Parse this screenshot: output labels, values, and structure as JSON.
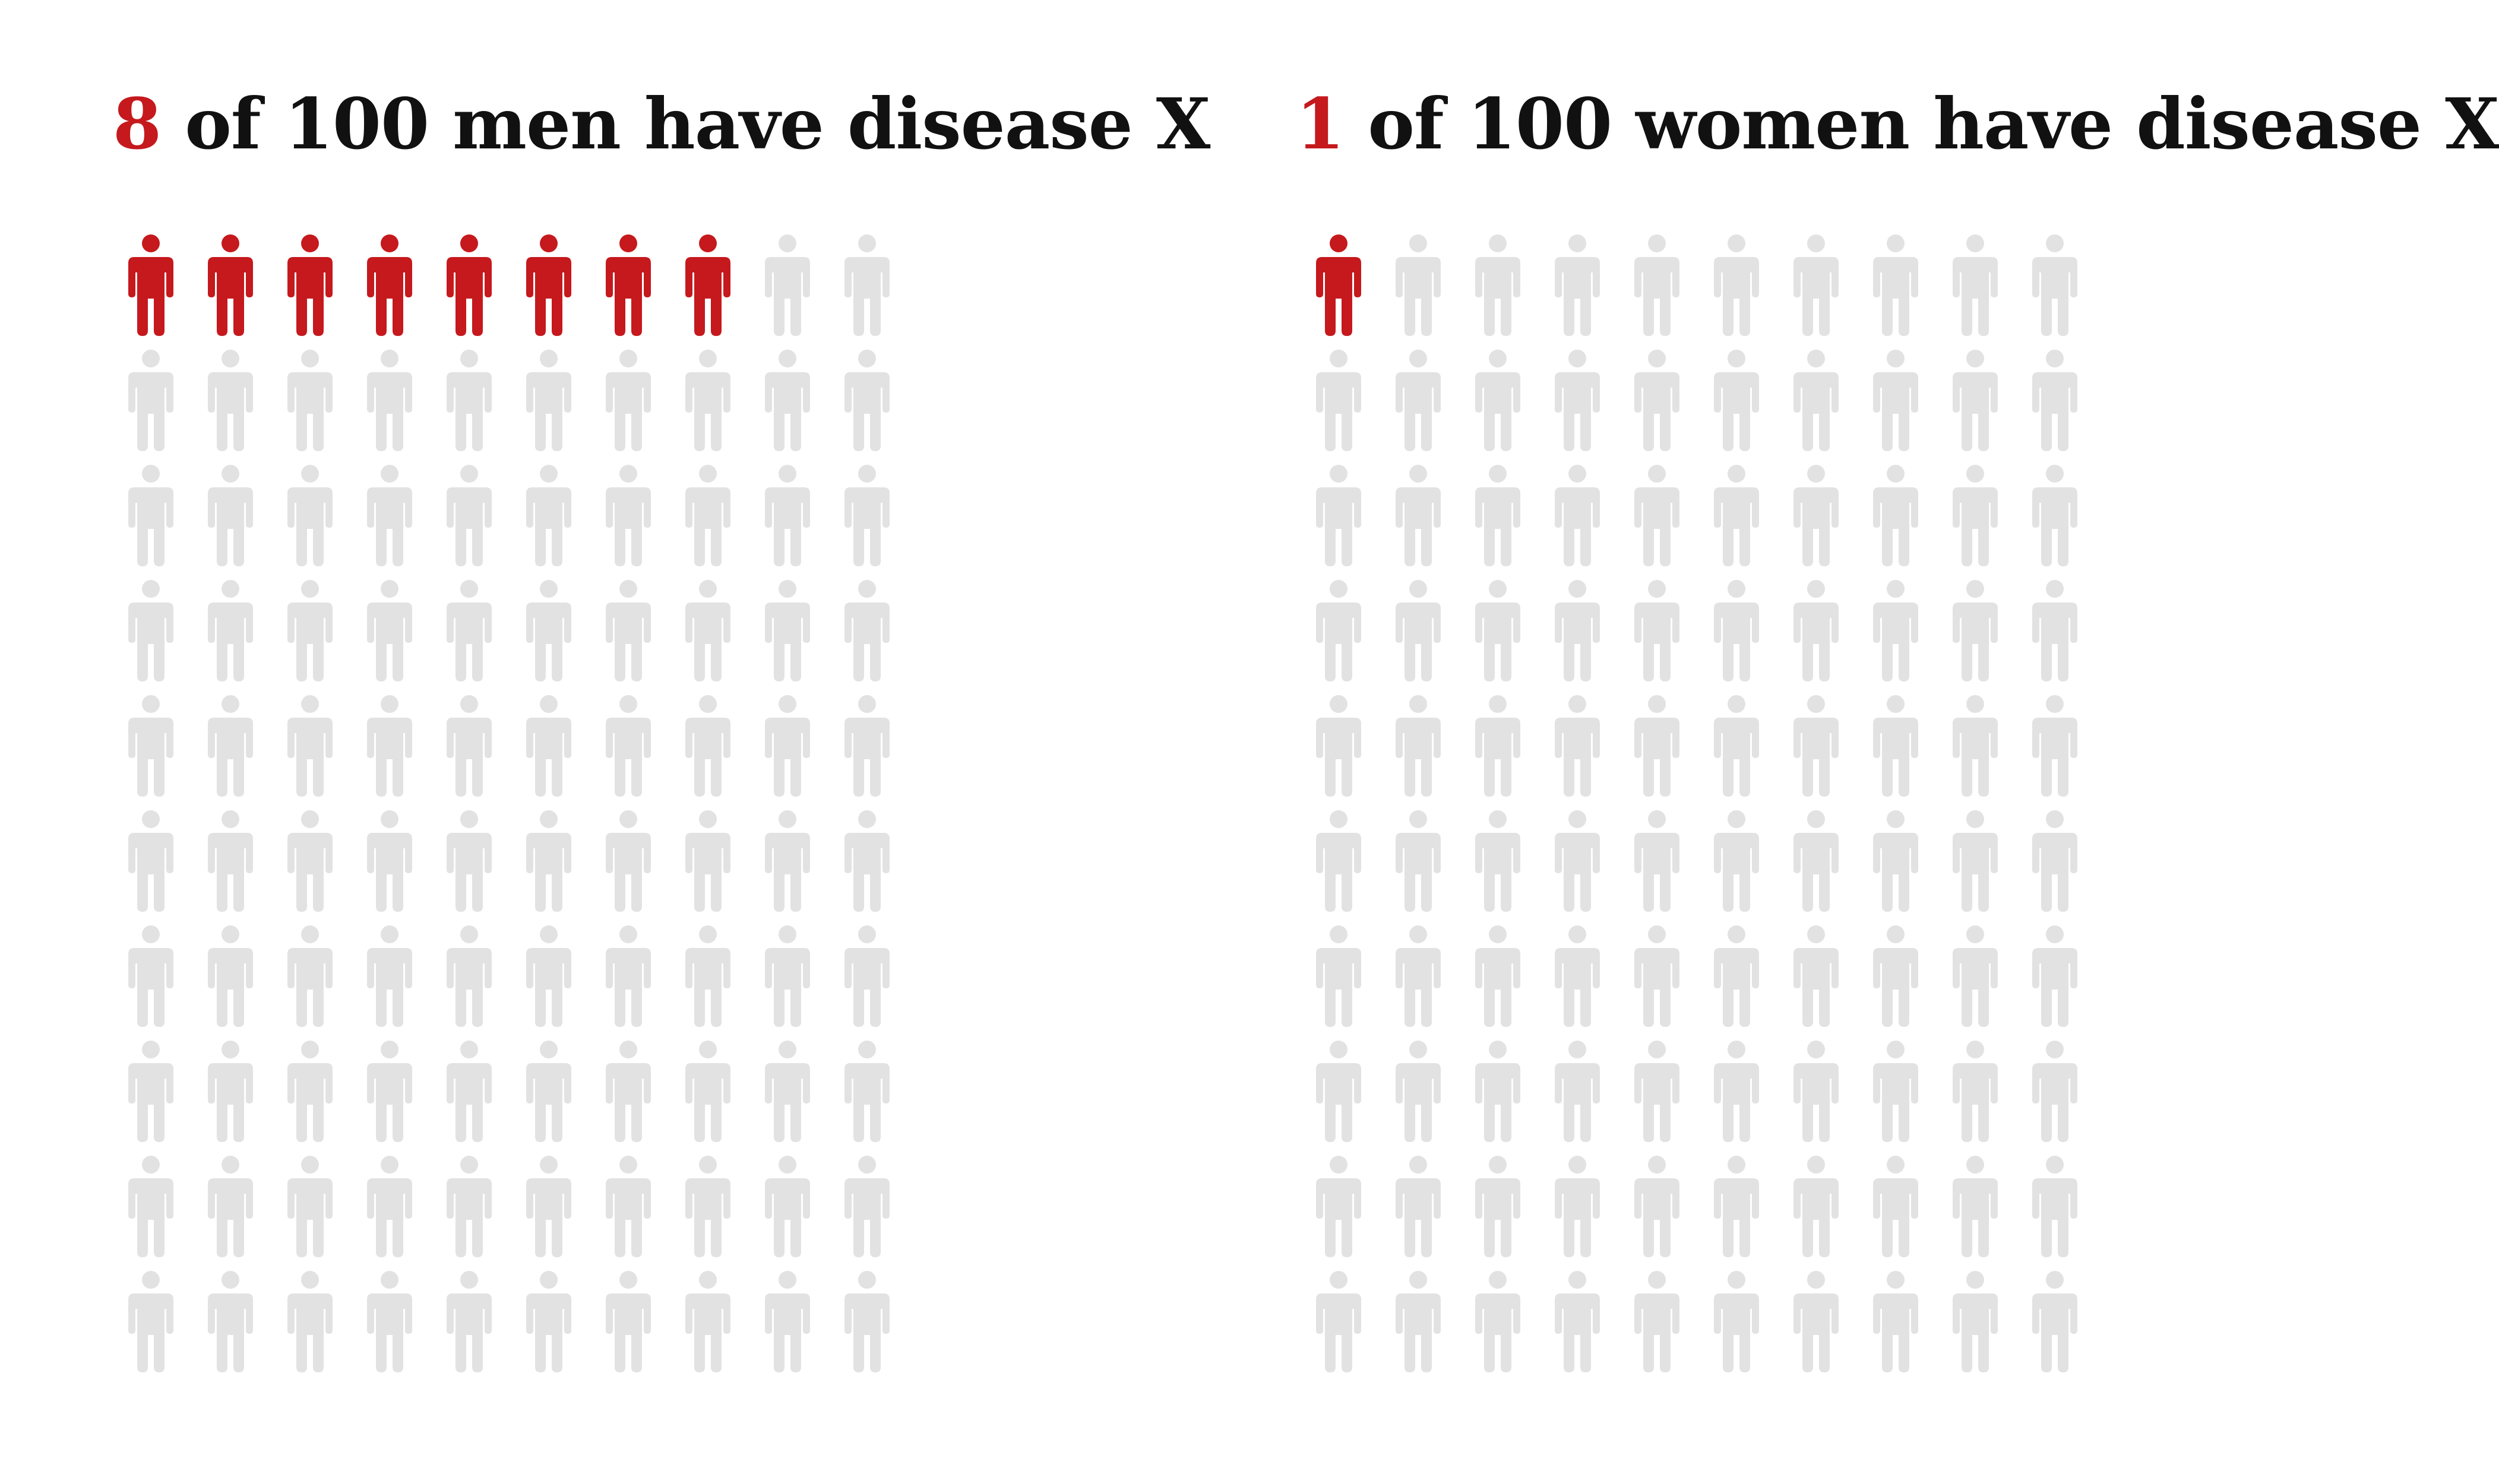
{
  "chart_data": [
    {
      "type": "pictogram",
      "count": 8,
      "total": 100,
      "title": {
        "count": "8",
        "rest": " of 100 men have disease X"
      },
      "colors": {
        "affected": "#c5191d",
        "unaffected": "#e2e2e2"
      }
    },
    {
      "type": "pictogram",
      "count": 1,
      "total": 100,
      "title": {
        "count": "1",
        "rest": " of 100 women have disease X"
      },
      "colors": {
        "affected": "#c5191d",
        "unaffected": "#e2e2e2"
      }
    }
  ]
}
